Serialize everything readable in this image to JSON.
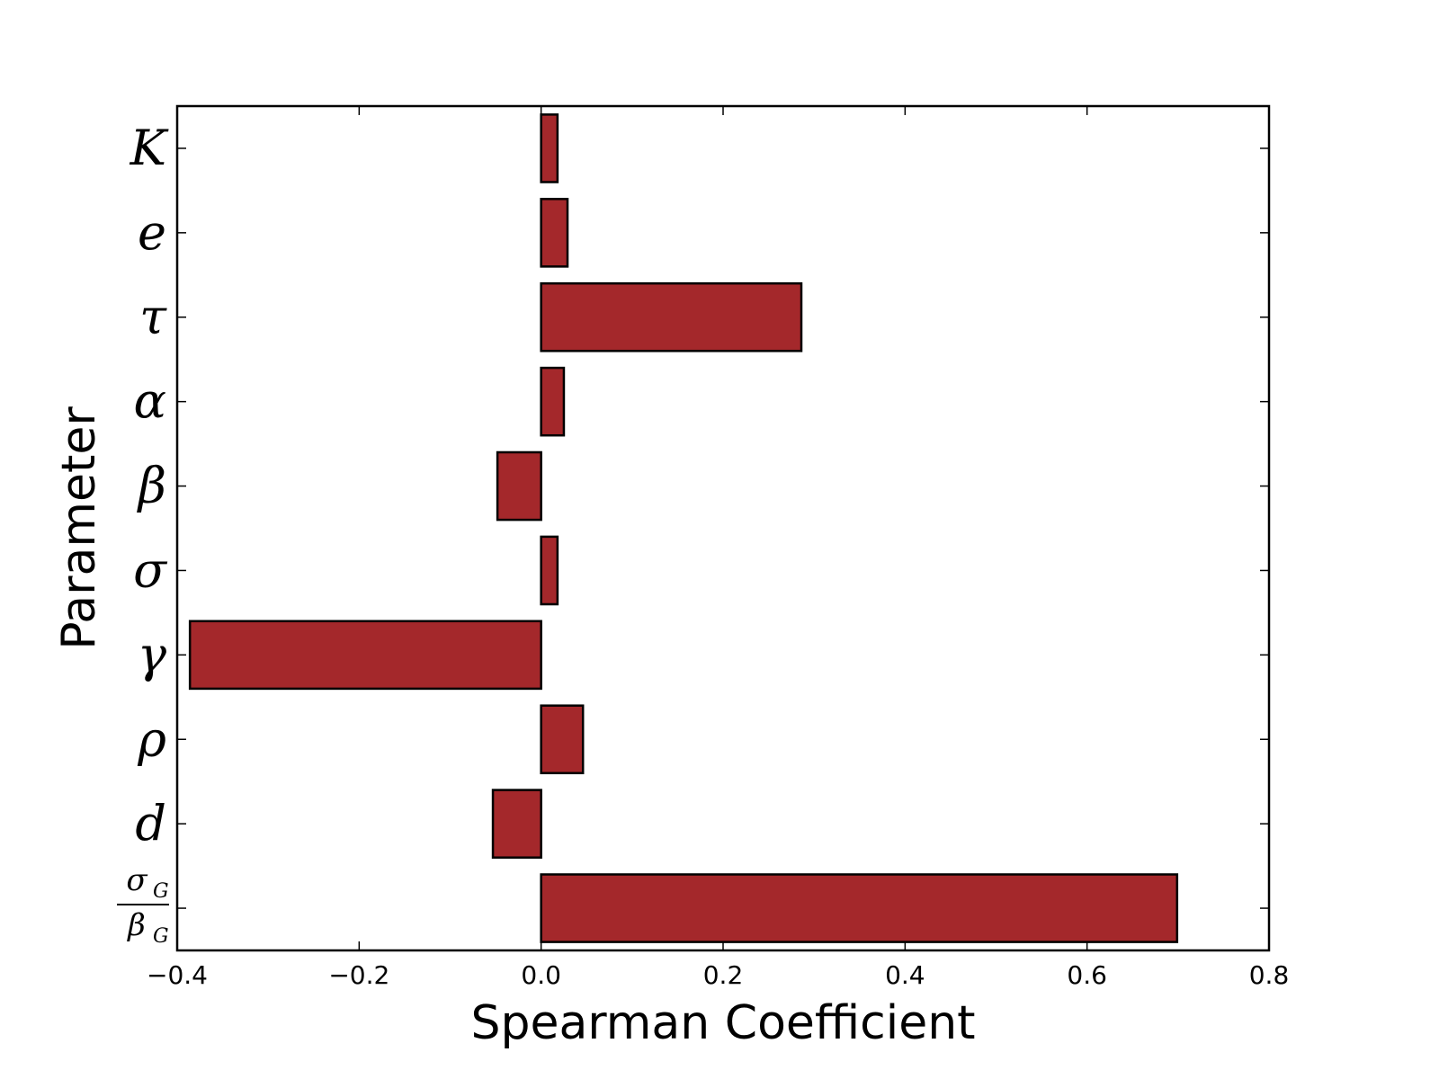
{
  "chart_data": {
    "type": "bar",
    "orientation": "horizontal",
    "xlabel": "Spearman Coefficient",
    "ylabel": "Parameter",
    "xlim": [
      -0.4,
      0.8
    ],
    "xticks": [
      -0.4,
      -0.2,
      0.0,
      0.2,
      0.4,
      0.6,
      0.8
    ],
    "xtick_labels": [
      "−0.4",
      "−0.2",
      "0.0",
      "0.2",
      "0.4",
      "0.6",
      "0.8"
    ],
    "categories": [
      "K",
      "e",
      "τ",
      "α",
      "β",
      "σ",
      "γ",
      "ρ",
      "d",
      "σG/βG"
    ],
    "category_labels": [
      {
        "main": "K"
      },
      {
        "main": "e"
      },
      {
        "main": "τ"
      },
      {
        "main": "α"
      },
      {
        "main": "β"
      },
      {
        "main": "σ"
      },
      {
        "main": "γ"
      },
      {
        "main": "ρ"
      },
      {
        "main": "d"
      },
      {
        "num": "σ",
        "num_sub": "G",
        "den": "β",
        "den_sub": "G"
      }
    ],
    "values": [
      0.018,
      0.029,
      0.286,
      0.025,
      -0.048,
      0.018,
      -0.386,
      0.046,
      -0.053,
      0.699
    ],
    "bar_color": "#a4282b",
    "bar_edge_color": "#000000",
    "grid": false,
    "legend": "none"
  }
}
